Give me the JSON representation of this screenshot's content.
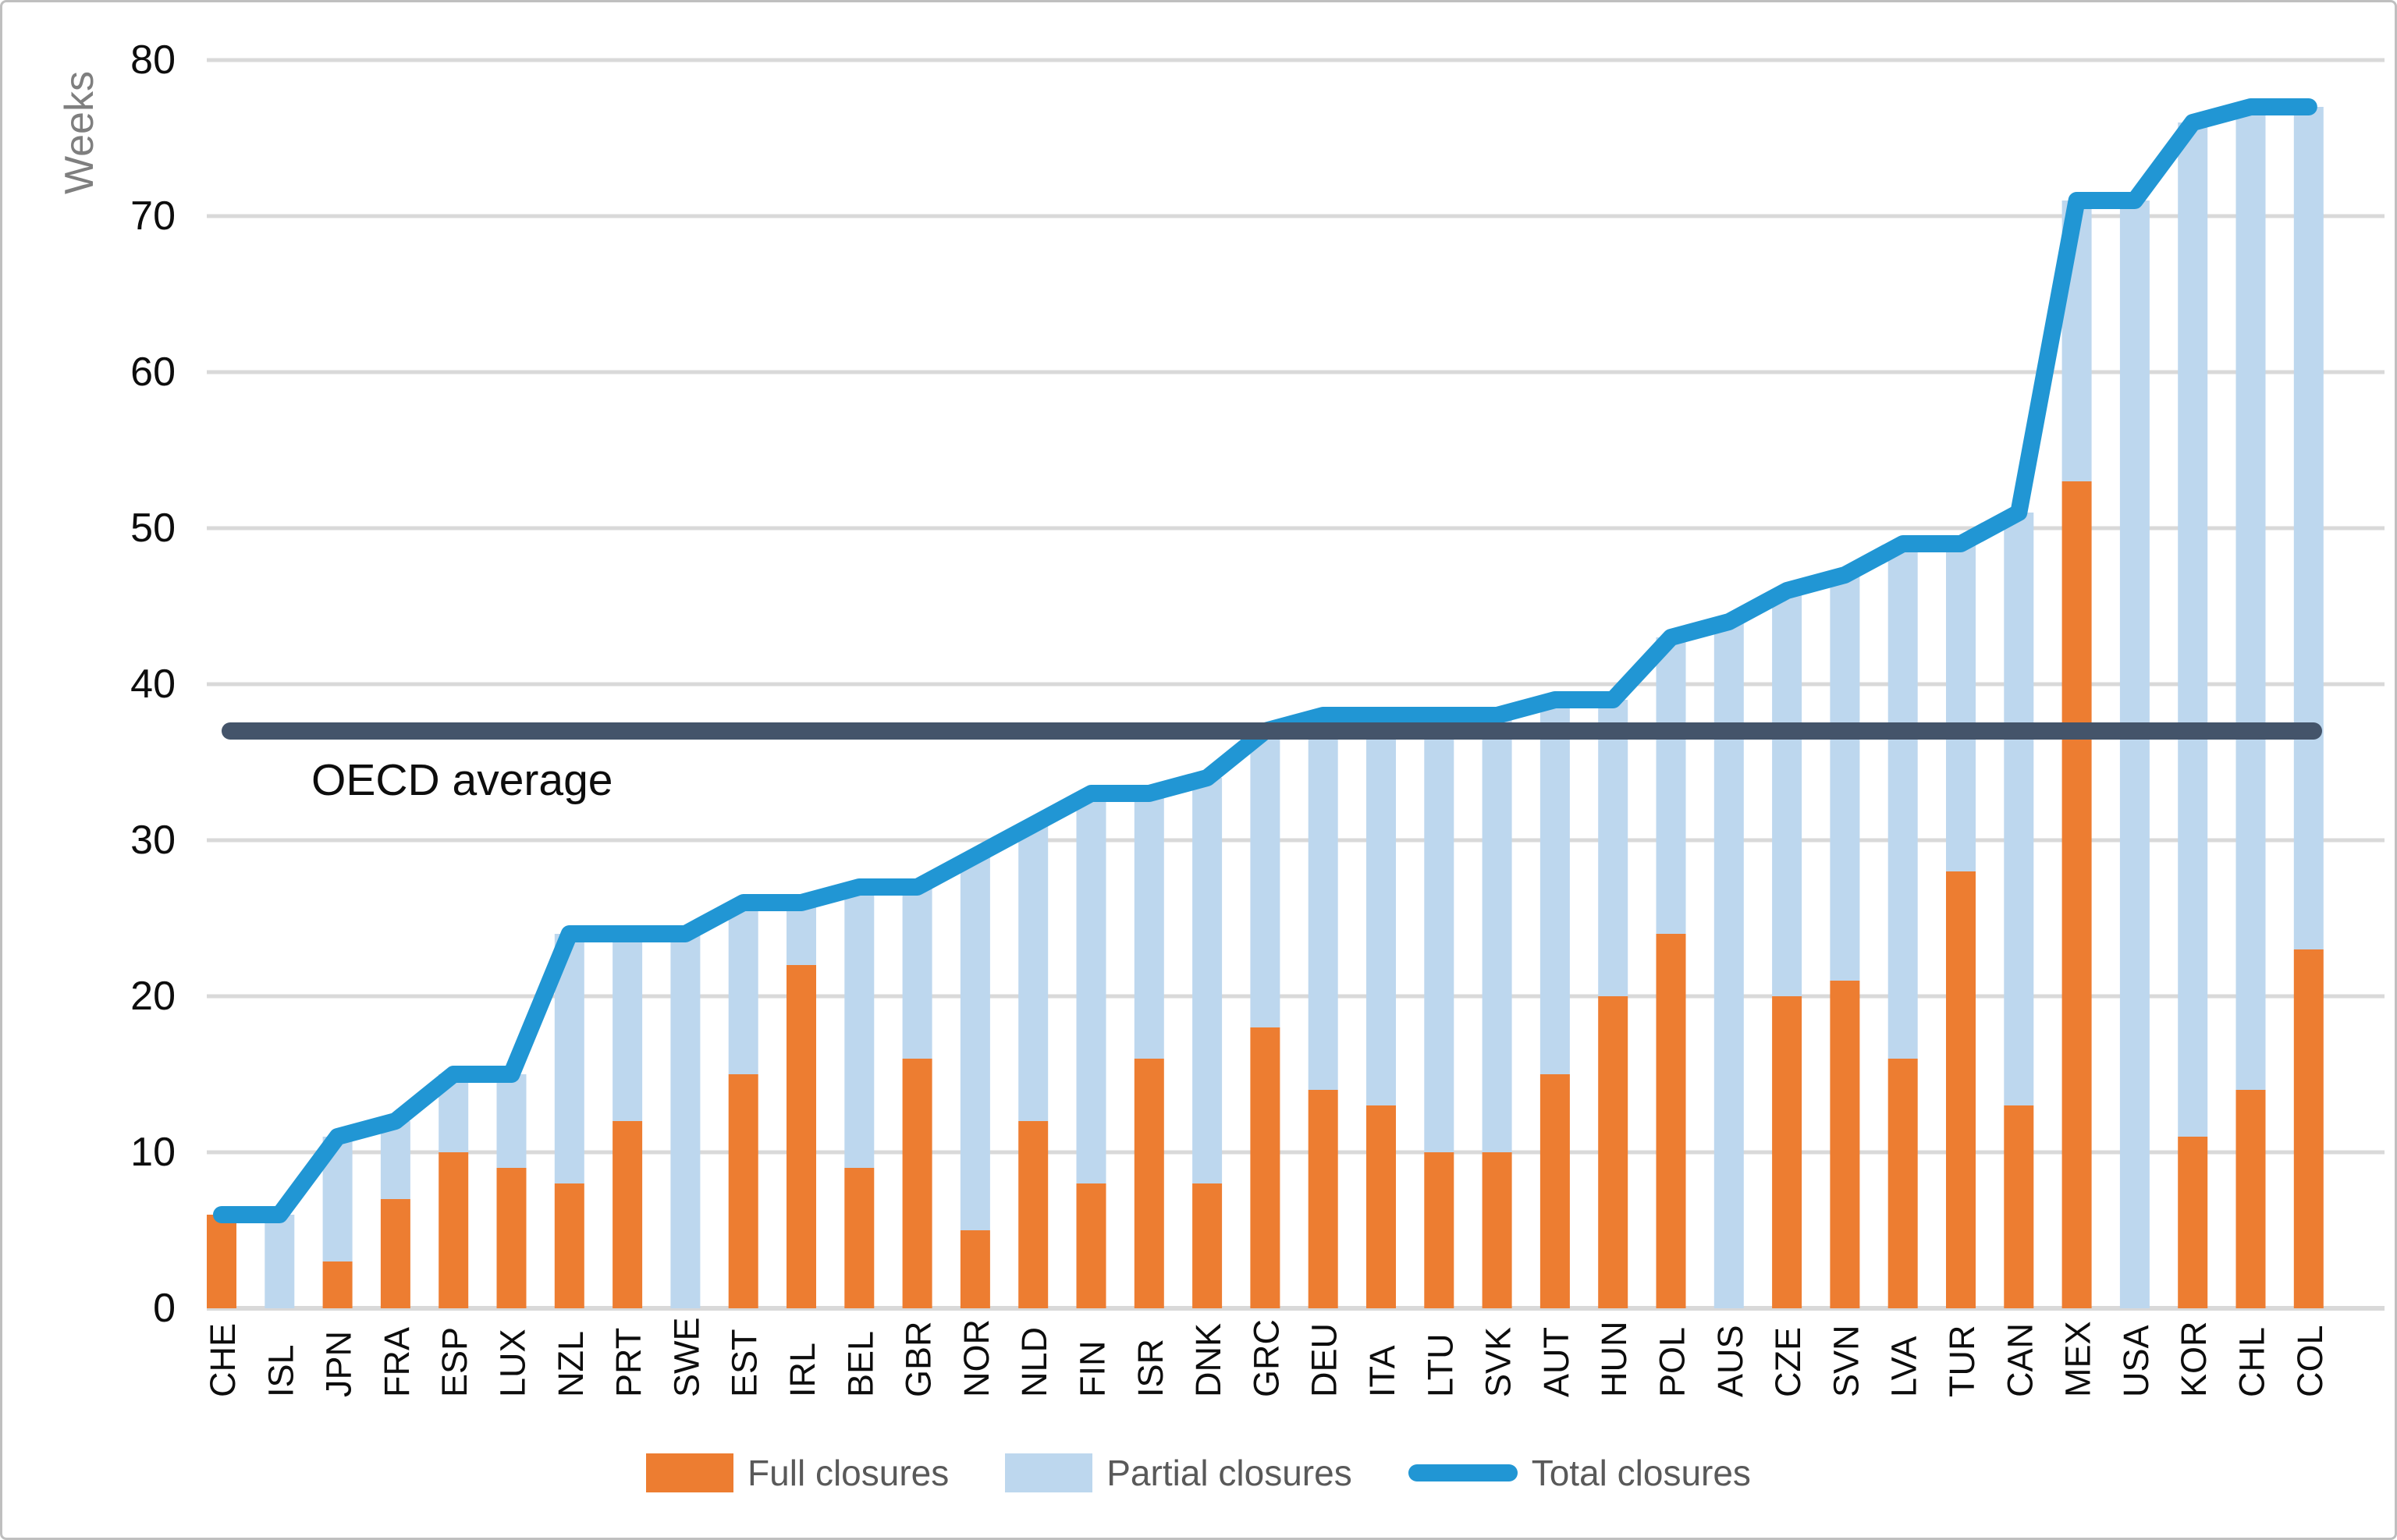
{
  "chart_data": {
    "type": "bar",
    "subtype": "stacked-bars-with-line",
    "title": "",
    "xlabel": "",
    "ylabel": "Weeks",
    "ylim": [
      0,
      80
    ],
    "ytick_step": 10,
    "yticks": [
      0,
      10,
      20,
      30,
      40,
      50,
      60,
      70,
      80
    ],
    "grid": "horizontal",
    "tick_label_rotation": 90,
    "legend_position": "bottom",
    "categories": [
      "CHE",
      "ISL",
      "JPN",
      "FRA",
      "ESP",
      "LUX",
      "NZL",
      "PRT",
      "SWE",
      "EST",
      "IRL",
      "BEL",
      "GBR",
      "NOR",
      "NLD",
      "FIN",
      "ISR",
      "DNK",
      "GRC",
      "DEU",
      "ITA",
      "LTU",
      "SVK",
      "AUT",
      "HUN",
      "POL",
      "AUS",
      "CZE",
      "SVN",
      "LVA",
      "TUR",
      "CAN",
      "MEX",
      "USA",
      "KOR",
      "CHL",
      "COL"
    ],
    "series": [
      {
        "name": "Full closures",
        "type": "bar",
        "color": "#ED7D31",
        "values": [
          6,
          0,
          3,
          7,
          10,
          9,
          8,
          12,
          0,
          15,
          22,
          9,
          16,
          5,
          12,
          8,
          16,
          8,
          18,
          14,
          13,
          10,
          10,
          15,
          20,
          24,
          0,
          20,
          21,
          16,
          28,
          13,
          53,
          0,
          11,
          14,
          23
        ]
      },
      {
        "name": "Partial closures",
        "type": "bar",
        "color": "#BDD7EE",
        "values": [
          0,
          6,
          8,
          5,
          5,
          6,
          16,
          12,
          24,
          11,
          4,
          18,
          11,
          24,
          19,
          25,
          17,
          26,
          19,
          24,
          25,
          28,
          28,
          24,
          19,
          19,
          44,
          26,
          26,
          33,
          21,
          38,
          18,
          71,
          65,
          63,
          54
        ]
      },
      {
        "name": "Total closures",
        "type": "line",
        "color": "#2196D4",
        "values": [
          6,
          6,
          11,
          12,
          15,
          15,
          24,
          24,
          24,
          26,
          26,
          27,
          27,
          29,
          31,
          33,
          33,
          34,
          37,
          38,
          38,
          38,
          38,
          39,
          39,
          43,
          44,
          46,
          47,
          49,
          49,
          51,
          71,
          71,
          76,
          77,
          77
        ]
      }
    ],
    "annotation": {
      "label": "OECD average",
      "value": 37,
      "color": "#44546A"
    }
  },
  "colors": {
    "full_bar": "#ED7D31",
    "partial_bar": "#BDD7EE",
    "total_line": "#2196D4",
    "oecd_line": "#44546A",
    "gridline": "#D9D9D9",
    "axis_text": "#0d0d0d",
    "muted_text": "#7F7F7F",
    "legend_text": "#595959"
  }
}
